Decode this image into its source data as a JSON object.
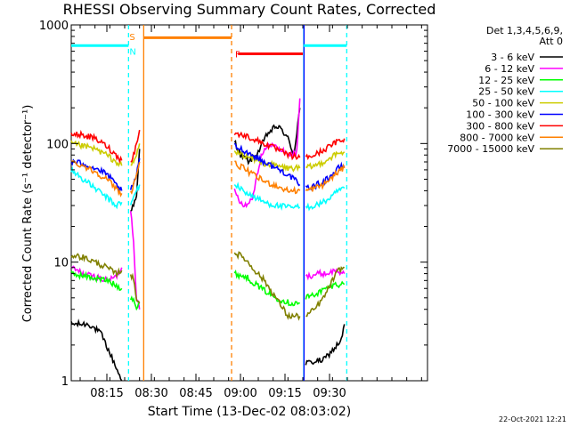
{
  "chart_data": {
    "type": "line",
    "title": "RHESSI Observing Summary Count Rates, Corrected",
    "xlabel": "Start Time (13-Dec-02 08:03:02)",
    "ylabel": "Corrected Count Rate (s⁻¹ detector⁻¹)",
    "yscale": "log",
    "ylim": [
      1,
      1000
    ],
    "xlim_min": [
      2,
      122
    ],
    "x_ticks": [
      {
        "m": 14,
        "label": "08:15"
      },
      {
        "m": 29,
        "label": "08:30"
      },
      {
        "m": 44,
        "label": "08:45"
      },
      {
        "m": 59,
        "label": "09:00"
      },
      {
        "m": 74,
        "label": "09:15"
      },
      {
        "m": 89,
        "label": "09:30"
      }
    ],
    "y_ticks": [
      {
        "v": 1,
        "label": "1"
      },
      {
        "v": 10,
        "label": "10"
      },
      {
        "v": 100,
        "label": "100"
      },
      {
        "v": 1000,
        "label": "1000"
      }
    ],
    "legend_header": [
      "Det 1,3,4,5,6,9,",
      "Att 0"
    ],
    "series": [
      {
        "name": "3 - 6 keV",
        "color": "#000000",
        "segments": [
          [
            [
              2,
              3.0
            ],
            [
              8,
              3.0
            ],
            [
              12,
              2.5
            ],
            [
              16,
              1.5
            ],
            [
              19,
              1.0
            ]
          ],
          [
            [
              22,
              28
            ],
            [
              23,
              30
            ],
            [
              24,
              35
            ],
            [
              25,
              90
            ]
          ],
          [
            [
              57,
              105
            ],
            [
              59,
              80
            ],
            [
              62,
              70
            ],
            [
              65,
              85
            ],
            [
              68,
              120
            ],
            [
              71,
              140
            ],
            [
              73,
              130
            ],
            [
              75,
              110
            ],
            [
              77,
              80
            ],
            [
              79,
              200
            ]
          ],
          [
            [
              81,
              1.4
            ],
            [
              87,
              1.5
            ],
            [
              90,
              1.8
            ],
            [
              93,
              2.2
            ],
            [
              94,
              3.0
            ]
          ]
        ]
      },
      {
        "name": "6 - 12 keV",
        "color": "#ff00ff",
        "segments": [
          [
            [
              2,
              9
            ],
            [
              6,
              8
            ],
            [
              10,
              7.5
            ],
            [
              14,
              7
            ],
            [
              17,
              7.5
            ],
            [
              19,
              9
            ]
          ],
          [
            [
              22,
              28
            ],
            [
              23,
              15
            ],
            [
              24,
              5
            ],
            [
              25,
              4
            ]
          ],
          [
            [
              57,
              40
            ],
            [
              59,
              32
            ],
            [
              61,
              30
            ],
            [
              63,
              35
            ],
            [
              66,
              80
            ],
            [
              69,
              100
            ],
            [
              72,
              90
            ],
            [
              76,
              80
            ],
            [
              78,
              85
            ],
            [
              79,
              240
            ]
          ],
          [
            [
              81,
              7.5
            ],
            [
              85,
              8
            ],
            [
              88,
              8
            ],
            [
              91,
              8.5
            ],
            [
              94,
              8
            ]
          ]
        ]
      },
      {
        "name": "12 - 25 keV",
        "color": "#00ff00",
        "segments": [
          [
            [
              2,
              8
            ],
            [
              8,
              7.5
            ],
            [
              14,
              7
            ],
            [
              19,
              6
            ]
          ],
          [
            [
              22,
              5
            ],
            [
              23,
              5
            ],
            [
              24,
              4
            ],
            [
              25,
              4.5
            ]
          ],
          [
            [
              57,
              8
            ],
            [
              61,
              7.5
            ],
            [
              66,
              6
            ],
            [
              71,
              5
            ],
            [
              76,
              4.5
            ],
            [
              79,
              4.5
            ]
          ],
          [
            [
              81,
              5
            ],
            [
              85,
              5.5
            ],
            [
              88,
              6
            ],
            [
              91,
              6.5
            ],
            [
              94,
              6.5
            ]
          ]
        ]
      },
      {
        "name": "25 - 50 keV",
        "color": "#00ffff",
        "segments": [
          [
            [
              2,
              60
            ],
            [
              6,
              50
            ],
            [
              10,
              42
            ],
            [
              14,
              35
            ],
            [
              17,
              30
            ],
            [
              19,
              32
            ]
          ],
          [
            [
              22,
              30
            ],
            [
              23,
              35
            ],
            [
              24,
              40
            ],
            [
              25,
              45
            ]
          ],
          [
            [
              57,
              45
            ],
            [
              60,
              40
            ],
            [
              63,
              36
            ],
            [
              67,
              32
            ],
            [
              71,
              30
            ],
            [
              75,
              29
            ],
            [
              79,
              29
            ]
          ],
          [
            [
              81,
              29
            ],
            [
              84,
              30
            ],
            [
              87,
              32
            ],
            [
              90,
              36
            ],
            [
              92,
              40
            ],
            [
              94,
              42
            ]
          ]
        ]
      },
      {
        "name": "50 - 100 keV",
        "color": "#cccc00",
        "segments": [
          [
            [
              2,
              100
            ],
            [
              6,
              95
            ],
            [
              10,
              90
            ],
            [
              14,
              80
            ],
            [
              17,
              70
            ],
            [
              19,
              65
            ]
          ],
          [
            [
              22,
              65
            ],
            [
              23,
              70
            ],
            [
              24,
              80
            ],
            [
              25,
              100
            ]
          ],
          [
            [
              57,
              85
            ],
            [
              60,
              80
            ],
            [
              63,
              75
            ],
            [
              67,
              68
            ],
            [
              71,
              65
            ],
            [
              75,
              62
            ],
            [
              79,
              62
            ]
          ],
          [
            [
              81,
              62
            ],
            [
              84,
              65
            ],
            [
              87,
              70
            ],
            [
              90,
              78
            ],
            [
              92,
              82
            ],
            [
              94,
              85
            ]
          ]
        ]
      },
      {
        "name": "100 - 300 keV",
        "color": "#0000ff",
        "segments": [
          [
            [
              2,
              70
            ],
            [
              6,
              68
            ],
            [
              10,
              62
            ],
            [
              14,
              55
            ],
            [
              17,
              45
            ],
            [
              19,
              40
            ]
          ],
          [
            [
              22,
              40
            ],
            [
              23,
              45
            ],
            [
              24,
              55
            ],
            [
              25,
              75
            ]
          ],
          [
            [
              57,
              95
            ],
            [
              60,
              88
            ],
            [
              63,
              80
            ],
            [
              67,
              70
            ],
            [
              71,
              62
            ],
            [
              75,
              55
            ],
            [
              79,
              45
            ]
          ],
          [
            [
              81,
              42
            ],
            [
              84,
              44
            ],
            [
              87,
              48
            ],
            [
              90,
              55
            ],
            [
              92,
              62
            ],
            [
              94,
              65
            ]
          ]
        ]
      },
      {
        "name": "300 - 800 keV",
        "color": "#ff0000",
        "segments": [
          [
            [
              2,
              120
            ],
            [
              6,
              118
            ],
            [
              10,
              110
            ],
            [
              14,
              95
            ],
            [
              17,
              80
            ],
            [
              19,
              72
            ]
          ],
          [
            [
              22,
              72
            ],
            [
              23,
              80
            ],
            [
              24,
              100
            ],
            [
              25,
              130
            ]
          ],
          [
            [
              57,
              120
            ],
            [
              60,
              118
            ],
            [
              63,
              110
            ],
            [
              67,
              100
            ],
            [
              71,
              90
            ],
            [
              75,
              80
            ],
            [
              79,
              76
            ]
          ],
          [
            [
              81,
              76
            ],
            [
              84,
              80
            ],
            [
              87,
              88
            ],
            [
              90,
              98
            ],
            [
              92,
              105
            ],
            [
              94,
              110
            ]
          ]
        ]
      },
      {
        "name": "800 - 7000 keV",
        "color": "#ff8000",
        "segments": [
          [
            [
              2,
              70
            ],
            [
              6,
              65
            ],
            [
              10,
              58
            ],
            [
              14,
              50
            ],
            [
              17,
              42
            ],
            [
              19,
              38
            ]
          ],
          [
            [
              22,
              38
            ],
            [
              23,
              45
            ],
            [
              24,
              55
            ],
            [
              25,
              70
            ]
          ],
          [
            [
              57,
              68
            ],
            [
              60,
              62
            ],
            [
              63,
              55
            ],
            [
              67,
              48
            ],
            [
              71,
              44
            ],
            [
              75,
              40
            ],
            [
              79,
              40
            ]
          ],
          [
            [
              81,
              40
            ],
            [
              84,
              42
            ],
            [
              87,
              45
            ],
            [
              90,
              52
            ],
            [
              92,
              58
            ],
            [
              94,
              62
            ]
          ]
        ]
      },
      {
        "name": "7000 - 15000 keV",
        "color": "#808000",
        "segments": [
          [
            [
              2,
              11.5
            ],
            [
              6,
              11
            ],
            [
              10,
              10
            ],
            [
              14,
              9
            ],
            [
              17,
              8
            ],
            [
              19,
              8.5
            ]
          ],
          [
            [
              22,
              8
            ],
            [
              23,
              7
            ],
            [
              24,
              5
            ],
            [
              25,
              4.5
            ]
          ],
          [
            [
              57,
              12
            ],
            [
              60,
              11
            ],
            [
              63,
              9
            ],
            [
              67,
              7
            ],
            [
              71,
              5
            ],
            [
              75,
              3.5
            ],
            [
              79,
              3.5
            ]
          ],
          [
            [
              81,
              3.5
            ],
            [
              84,
              4
            ],
            [
              87,
              5
            ],
            [
              90,
              7
            ],
            [
              92,
              8.5
            ],
            [
              94,
              9
            ]
          ]
        ]
      }
    ],
    "v_lines": [
      {
        "m": 21.3,
        "color": "#00ffff",
        "style": "dashed"
      },
      {
        "m": 80.3,
        "color": "#00ffff",
        "style": "solid"
      },
      {
        "m": 94.8,
        "color": "#00ffff",
        "style": "dashed"
      },
      {
        "m": 26.4,
        "color": "#ff8000",
        "style": "solid"
      },
      {
        "m": 56.0,
        "color": "#ff8000",
        "style": "dashed"
      },
      {
        "m": 80.4,
        "color": "#0000ff",
        "style": "solid"
      }
    ],
    "h_bars": [
      {
        "m0": 2,
        "m1": 21.3,
        "v": 670,
        "color": "#00ffff"
      },
      {
        "m0": 80.3,
        "m1": 94.8,
        "v": 670,
        "color": "#00ffff"
      },
      {
        "m0": 26.4,
        "m1": 56.0,
        "v": 780,
        "color": "#ff8000"
      },
      {
        "m0": 58.2,
        "m1": 80.0,
        "v": 570,
        "color": "#ff0000"
      }
    ],
    "markers": [
      {
        "text": "S",
        "m": 21.6,
        "v": 800,
        "color": "#ff8000"
      },
      {
        "text": "N",
        "m": 21.6,
        "v": 600,
        "color": "#00ffff"
      },
      {
        "text": "F",
        "m": 57.2,
        "v": 570,
        "color": "#ff0000"
      }
    ]
  },
  "footer": {
    "date": "22-Oct-2021 12:21"
  }
}
